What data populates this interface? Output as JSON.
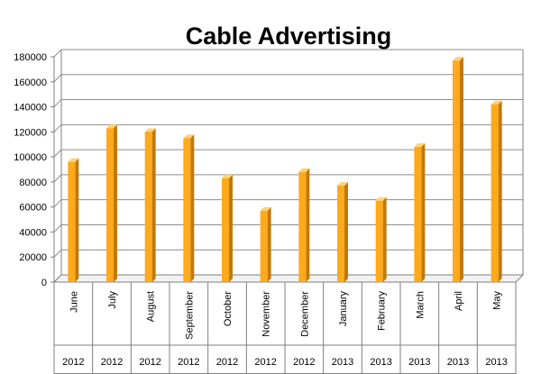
{
  "chart_data": {
    "type": "bar",
    "title": "Cable Advertising",
    "xlabel": "",
    "ylabel": "",
    "ylim": [
      0,
      180000
    ],
    "yticks": [
      0,
      20000,
      40000,
      60000,
      80000,
      100000,
      120000,
      140000,
      160000,
      180000
    ],
    "ytick_labels": [
      "0",
      "20000",
      "40000",
      "60000",
      "80000",
      "100000",
      "120000",
      "140000",
      "160000",
      "180000"
    ],
    "categories": [
      "June",
      "July",
      "August",
      "September",
      "October",
      "November",
      "December",
      "January",
      "February",
      "March",
      "April",
      "May"
    ],
    "years": [
      "2012",
      "2012",
      "2012",
      "2012",
      "2012",
      "2012",
      "2012",
      "2013",
      "2013",
      "2013",
      "2013",
      "2013"
    ],
    "values": [
      96000,
      123000,
      120000,
      115000,
      83000,
      57000,
      88000,
      77000,
      65000,
      108000,
      177000,
      142000
    ],
    "grid": true,
    "legend": "none",
    "colors": {
      "bar_front": "#FFA91C",
      "bar_side": "#C07A0A",
      "bar_top": "#FFD27A",
      "gridline": "#8c8c8c",
      "wall": "#ffffff",
      "axis": "#7f7f7f"
    }
  }
}
